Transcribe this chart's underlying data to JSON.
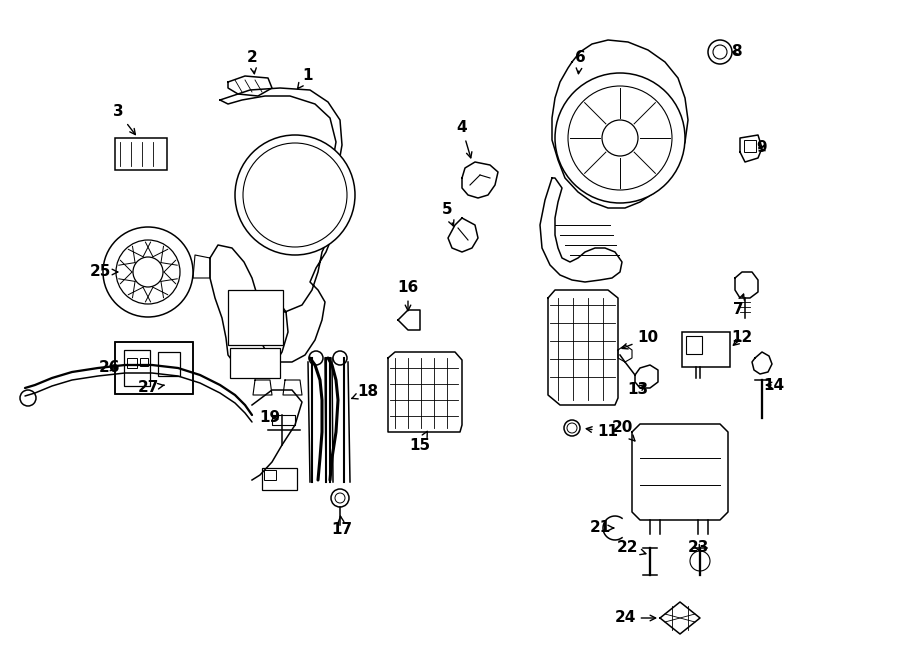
{
  "background_color": "#ffffff",
  "line_color": "#000000",
  "fig_width": 9.0,
  "fig_height": 6.62,
  "dpi": 100,
  "label_fontsize": 11,
  "arrow_lw": 1.0,
  "part_lw": 1.1
}
